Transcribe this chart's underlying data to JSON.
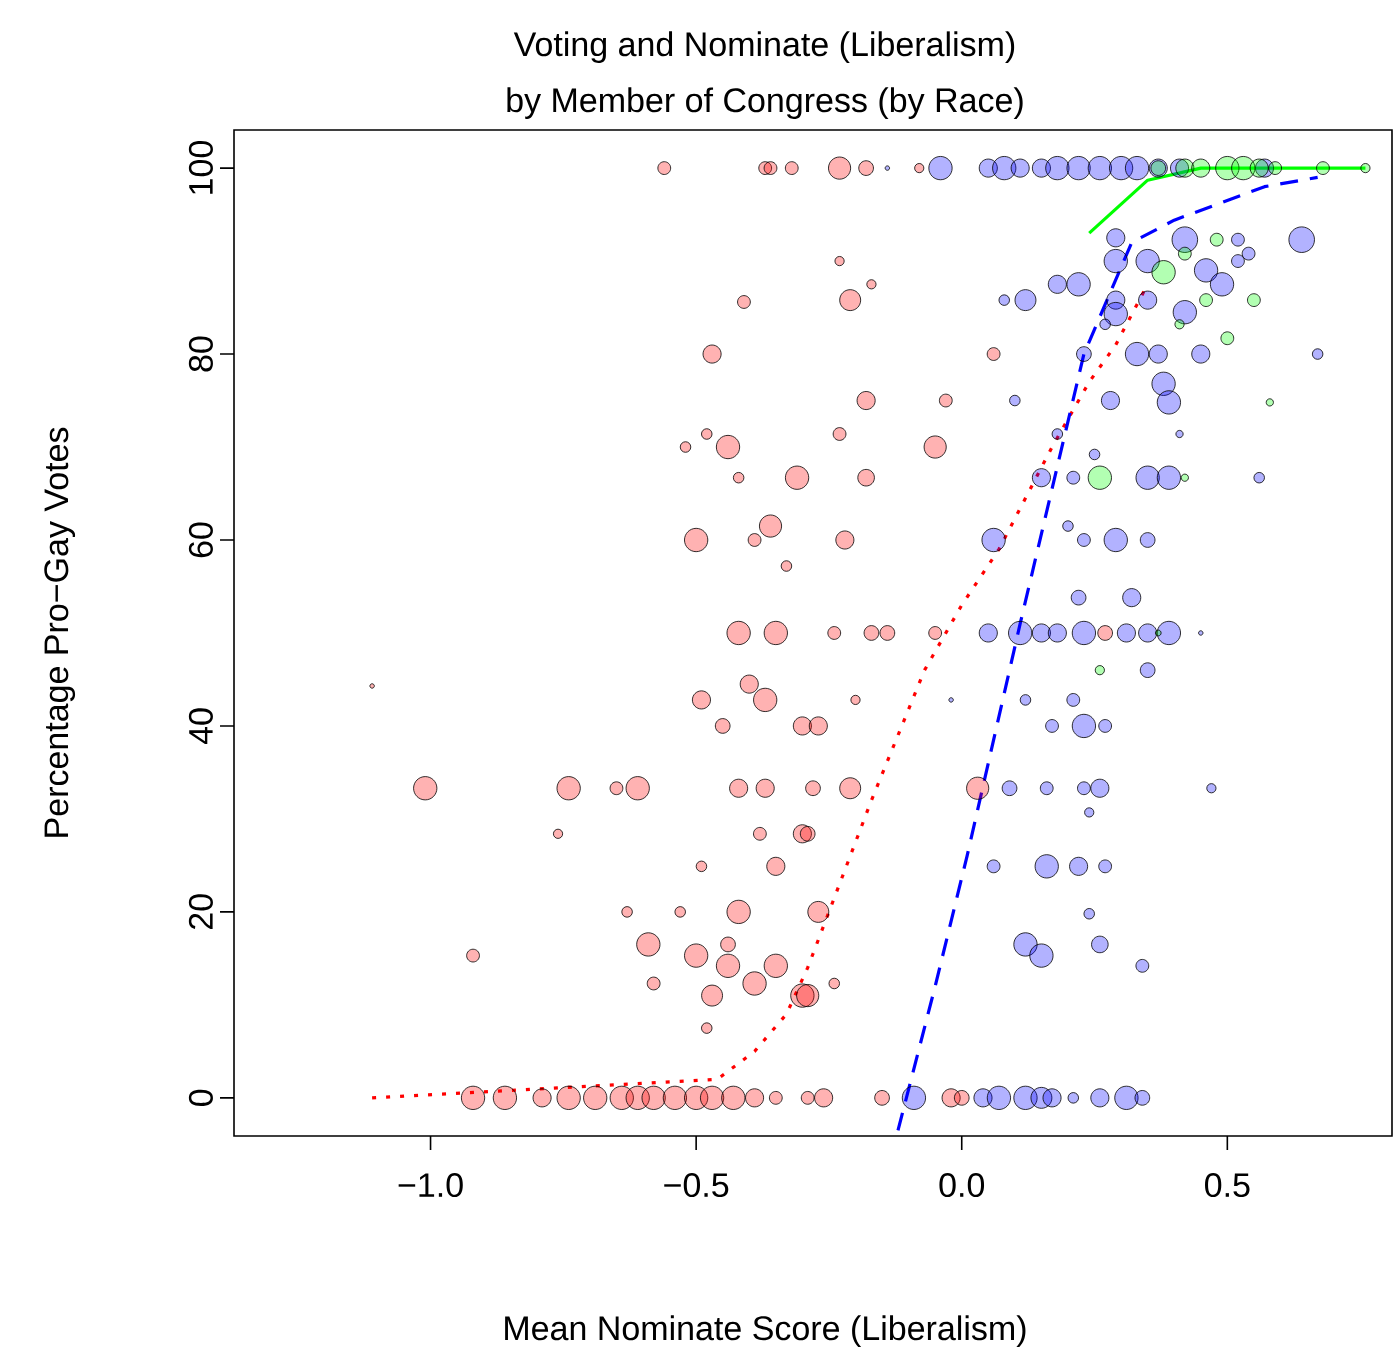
{
  "chart_data": {
    "type": "bubble",
    "title": "Voting and Nominate (Liberalism)",
    "subtitle": "by Member of Congress (by Race)",
    "xlabel": "Mean Nominate Score (Liberalism)",
    "ylabel": "Percentage Pro−Gay Votes",
    "xlim": [
      -1.37,
      0.81
    ],
    "ylim": [
      -4.1,
      104.1
    ],
    "xticks": [
      {
        "value": -1.0,
        "label": "−1.0"
      },
      {
        "value": -0.5,
        "label": "−0.5"
      },
      {
        "value": 0.0,
        "label": "0.0"
      },
      {
        "value": 0.5,
        "label": "0.5"
      }
    ],
    "yticks": [
      0,
      20,
      40,
      60,
      80,
      100
    ],
    "series": [
      {
        "color": "#ff0000",
        "x": [
          -0.56,
          -0.37,
          -0.36,
          -0.32,
          -0.41,
          -0.47,
          -0.48,
          -0.52,
          -0.44,
          -0.42,
          -0.31,
          -0.5,
          -0.36,
          -0.39,
          -0.33,
          -0.23,
          -0.18,
          -0.08,
          -0.23,
          -0.17,
          -0.21,
          0.06,
          -0.18,
          -0.03,
          -0.23,
          -0.05,
          -0.18,
          -0.22,
          -1.11,
          -1.01,
          -0.92,
          -0.74,
          -0.65,
          -0.61,
          -0.42,
          -0.37,
          -0.76,
          -0.59,
          -0.49,
          -0.37,
          -0.4,
          -0.42,
          -0.35,
          -0.45,
          -0.3,
          -0.38,
          -0.3,
          -0.35,
          -0.49,
          -0.42,
          -0.53,
          -0.63,
          -0.5,
          -0.44,
          -0.35,
          -0.47,
          -0.39,
          -0.58,
          -0.48,
          -0.44,
          -0.3,
          -0.92,
          -0.86,
          -0.79,
          -0.74,
          -0.69,
          -0.64,
          -0.61,
          -0.58,
          -0.54,
          -0.5,
          -0.47,
          -0.43,
          -0.39,
          -0.35,
          -0.29,
          -0.26,
          -0.15,
          -0.02,
          0.0,
          -0.21,
          -0.28,
          0.03,
          -0.27,
          -0.29,
          -0.24,
          -0.27,
          -0.29,
          -0.24,
          -0.17,
          -0.14,
          -0.05,
          0.27,
          -0.2
        ],
        "values": [
          100,
          100,
          100,
          100,
          85.6,
          80,
          71.4,
          70,
          70,
          66.7,
          66.7,
          60,
          61.5,
          60,
          57.2,
          100,
          100,
          100,
          90,
          87.5,
          85.8,
          80,
          75,
          75,
          71.4,
          70,
          66.7,
          60,
          44.3,
          33.3,
          15.3,
          33.3,
          33.3,
          33.3,
          33.3,
          33.3,
          28.4,
          16.5,
          42.8,
          42.8,
          44.5,
          50,
          50,
          40,
          40,
          28.4,
          28.4,
          24.9,
          24.9,
          20,
          20,
          20,
          15.3,
          14.2,
          14.2,
          11,
          12.3,
          12.3,
          7.5,
          16.5,
          11,
          0,
          0,
          0,
          0,
          0,
          0,
          0,
          0,
          0,
          0,
          0,
          0,
          0,
          0,
          0,
          0,
          0,
          0,
          0,
          33.3,
          33.3,
          33.3,
          20,
          11,
          12.3,
          40,
          28.4,
          50,
          50,
          50,
          50,
          50,
          42.8
        ],
        "sizes": [
          0.25,
          0.25,
          0.25,
          0.25,
          0.25,
          0.5,
          0.17,
          0.17,
          0.83,
          0.17,
          0.83,
          0.83,
          0.75,
          0.25,
          0.17,
          0.75,
          0.33,
          0.13,
          0.13,
          0.13,
          0.67,
          0.25,
          0.5,
          0.25,
          0.25,
          0.75,
          0.42,
          0.5,
          0.03,
          0.83,
          0.25,
          0.83,
          0.25,
          0.83,
          0.5,
          0.5,
          0.13,
          0.83,
          0.5,
          0.83,
          0.5,
          0.83,
          0.83,
          0.33,
          0.5,
          0.25,
          0.5,
          0.5,
          0.17,
          0.83,
          0.17,
          0.17,
          0.83,
          0.83,
          0.83,
          0.67,
          0.83,
          0.25,
          0.17,
          0.33,
          0.83,
          0.83,
          0.83,
          0.5,
          0.83,
          0.83,
          0.83,
          0.83,
          0.83,
          0.83,
          0.83,
          0.83,
          0.83,
          0.5,
          0.25,
          0.25,
          0.5,
          0.33,
          0.5,
          0.33,
          0.67,
          0.33,
          0.75,
          0.67,
          0.75,
          0.17,
          0.5,
          0.33,
          0.25,
          0.33,
          0.33,
          0.25,
          0.33,
          0.13
        ]
      },
      {
        "color": "#0000ff",
        "x": [
          -0.04,
          0.05,
          0.08,
          0.11,
          0.15,
          0.18,
          0.22,
          0.26,
          0.3,
          0.33,
          0.37,
          0.41,
          0.57,
          -0.14,
          0.64,
          0.42,
          0.29,
          0.52,
          0.29,
          0.35,
          0.46,
          0.49,
          0.52,
          0.54,
          0.22,
          0.18,
          0.12,
          0.08,
          0.29,
          0.35,
          0.42,
          0.29,
          0.27,
          0.23,
          0.33,
          0.37,
          0.45,
          0.67,
          0.38,
          0.39,
          0.28,
          0.1,
          0.18,
          0.41,
          0.25,
          0.15,
          0.21,
          0.35,
          0.39,
          0.56,
          0.06,
          0.2,
          0.29,
          0.35,
          0.23,
          0.22,
          0.32,
          0.05,
          0.11,
          0.15,
          0.18,
          0.23,
          0.31,
          0.35,
          0.39,
          0.45,
          0.35,
          0.12,
          0.21,
          -0.02,
          0.23,
          0.17,
          0.27,
          0.09,
          0.16,
          0.23,
          0.26,
          0.47,
          0.24,
          0.06,
          0.16,
          0.22,
          0.27,
          0.24,
          0.12,
          0.15,
          0.26,
          0.34,
          -0.09,
          0.04,
          0.07,
          0.12,
          0.15,
          0.17,
          0.21,
          0.26,
          0.31,
          0.34
        ],
        "values": [
          100,
          100,
          100,
          100,
          100,
          100,
          100,
          100,
          100,
          100,
          100,
          100,
          100,
          100,
          92.3,
          92.3,
          92.5,
          92.3,
          90,
          90,
          89,
          87.5,
          90,
          90.8,
          87.5,
          87.5,
          85.8,
          85.8,
          85.8,
          85.8,
          84.5,
          84.3,
          83.2,
          80,
          80,
          80,
          80,
          80,
          76.8,
          74.8,
          75,
          75,
          71.4,
          71.4,
          69.2,
          66.7,
          66.7,
          66.7,
          66.7,
          66.7,
          60,
          61.5,
          60,
          60,
          60,
          53.8,
          53.8,
          50,
          50,
          50,
          50,
          50,
          50,
          50,
          50,
          50,
          46,
          42.8,
          42.8,
          42.8,
          40,
          40,
          40,
          33.3,
          33.3,
          33.3,
          33.3,
          33.3,
          30.7,
          24.9,
          24.9,
          24.9,
          24.9,
          19.8,
          16.5,
          15.3,
          16.5,
          14.2,
          0,
          0,
          0,
          0,
          0,
          0,
          0,
          0,
          0,
          0
        ],
        "sizes": [
          0.83,
          0.5,
          0.83,
          0.5,
          0.5,
          0.83,
          0.83,
          0.83,
          0.83,
          0.83,
          0.5,
          0.5,
          0.5,
          0.03,
          1,
          1,
          0.5,
          0.25,
          0.83,
          0.83,
          0.83,
          0.83,
          0.25,
          0.25,
          0.83,
          0.5,
          0.67,
          0.17,
          0.5,
          0.5,
          0.83,
          0.83,
          0.17,
          0.33,
          0.83,
          0.5,
          0.5,
          0.17,
          0.83,
          0.83,
          0.5,
          0.17,
          0.17,
          0.08,
          0.17,
          0.5,
          0.25,
          0.83,
          0.83,
          0.17,
          0.83,
          0.17,
          0.83,
          0.33,
          0.25,
          0.33,
          0.5,
          0.5,
          0.83,
          0.5,
          0.5,
          0.83,
          0.5,
          0.5,
          0.83,
          0.03,
          0.33,
          0.17,
          0.25,
          0.03,
          0.83,
          0.25,
          0.25,
          0.33,
          0.25,
          0.25,
          0.5,
          0.13,
          0.13,
          0.25,
          0.83,
          0.5,
          0.25,
          0.17,
          0.83,
          0.83,
          0.42,
          0.25,
          0.83,
          0.5,
          0.83,
          0.83,
          0.67,
          0.5,
          0.17,
          0.5,
          0.83,
          0.33
        ]
      },
      {
        "color": "#00ff00",
        "x": [
          0.37,
          0.42,
          0.45,
          0.5,
          0.53,
          0.56,
          0.59,
          0.68,
          0.76,
          0.38,
          0.48,
          0.42,
          0.46,
          0.55,
          0.5,
          0.41,
          0.58,
          0.26,
          0.42,
          0.26,
          0.37
        ],
        "values": [
          100,
          100,
          100,
          100,
          100,
          100,
          100,
          100,
          100,
          88.8,
          92.3,
          90.8,
          85.8,
          85.8,
          81.7,
          83.2,
          74.8,
          66.7,
          66.7,
          46,
          50
        ],
        "sizes": [
          0.33,
          0.5,
          0.5,
          0.83,
          0.83,
          0.5,
          0.25,
          0.25,
          0.13,
          0.83,
          0.25,
          0.25,
          0.25,
          0.25,
          0.25,
          0.13,
          0.08,
          0.83,
          0.08,
          0.13,
          0.05
        ]
      },
      {
        "type": "line",
        "color": "#ff0000",
        "line_style": "dotted",
        "x": [
          -1.11,
          -0.46,
          -0.39,
          -0.33,
          -0.29,
          -0.27,
          -0.17,
          -0.12,
          -0.07,
          0.0,
          0.07,
          0.17,
          0.24,
          0.29,
          0.35
        ],
        "values": [
          0,
          2,
          5,
          9,
          14,
          17,
          32,
          39,
          46,
          53,
          59,
          70,
          77,
          81,
          87.5
        ]
      },
      {
        "type": "line",
        "color": "#0000ff",
        "line_style": "dashed",
        "x": [
          -0.12,
          -0.05,
          0.01,
          0.11,
          0.23,
          0.32,
          0.4,
          0.57,
          0.67
        ],
        "values": [
          -3.5,
          12,
          26,
          51,
          80,
          92,
          94.4,
          98,
          99
        ]
      },
      {
        "type": "line",
        "color": "#00ff00",
        "line_style": "solid",
        "x": [
          0.24,
          0.35,
          0.45,
          0.76
        ],
        "values": [
          93,
          98.7,
          100,
          100
        ]
      }
    ]
  }
}
